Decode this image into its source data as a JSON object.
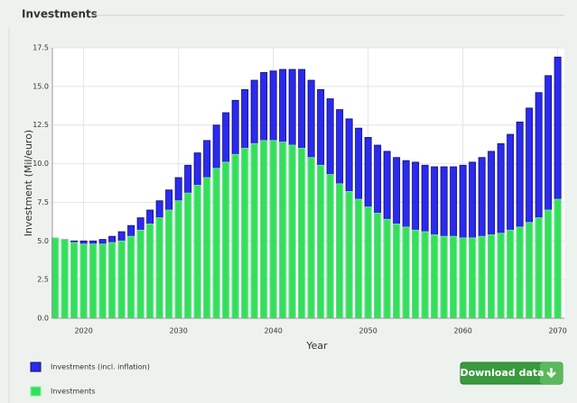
{
  "chart_data": {
    "type": "bar",
    "title": "Investments",
    "xlabel": "Year",
    "ylabel": "Investment (Mil/euro)",
    "x": [
      2017,
      2018,
      2019,
      2020,
      2021,
      2022,
      2023,
      2024,
      2025,
      2026,
      2027,
      2028,
      2029,
      2030,
      2031,
      2032,
      2033,
      2034,
      2035,
      2036,
      2037,
      2038,
      2039,
      2040,
      2041,
      2042,
      2043,
      2044,
      2045,
      2046,
      2047,
      2048,
      2049,
      2050,
      2051,
      2052,
      2053,
      2054,
      2055,
      2056,
      2057,
      2058,
      2059,
      2060,
      2061,
      2062,
      2063,
      2064,
      2065,
      2066,
      2067,
      2068,
      2069,
      2070
    ],
    "series": [
      {
        "name": "Investments (incl. inflation)",
        "color": "#2a2af0",
        "edge": "#10106a",
        "values": [
          5.2,
          5.1,
          5.0,
          5.0,
          5.0,
          5.1,
          5.3,
          5.6,
          6.0,
          6.5,
          7.0,
          7.6,
          8.3,
          9.1,
          9.9,
          10.7,
          11.5,
          12.5,
          13.3,
          14.1,
          14.8,
          15.4,
          15.9,
          16.0,
          16.1,
          16.1,
          16.1,
          15.4,
          14.8,
          14.2,
          13.5,
          12.9,
          12.3,
          11.7,
          11.2,
          10.8,
          10.4,
          10.2,
          10.1,
          9.9,
          9.8,
          9.8,
          9.8,
          9.9,
          10.1,
          10.4,
          10.8,
          11.3,
          11.9,
          12.7,
          13.6,
          14.6,
          15.7,
          16.9
        ]
      },
      {
        "name": "Investments",
        "color": "#33e05a",
        "edge": "#7ef09a",
        "values": [
          5.2,
          5.1,
          4.9,
          4.8,
          4.8,
          4.8,
          4.9,
          5.0,
          5.3,
          5.7,
          6.1,
          6.5,
          7.0,
          7.6,
          8.1,
          8.6,
          9.1,
          9.7,
          10.1,
          10.6,
          11.0,
          11.3,
          11.5,
          11.5,
          11.4,
          11.2,
          11.0,
          10.4,
          9.9,
          9.3,
          8.7,
          8.2,
          7.7,
          7.2,
          6.8,
          6.4,
          6.1,
          5.9,
          5.7,
          5.6,
          5.4,
          5.3,
          5.3,
          5.2,
          5.2,
          5.3,
          5.4,
          5.5,
          5.7,
          5.9,
          6.2,
          6.5,
          7.0,
          7.7
        ]
      }
    ],
    "xlim": [
      2016.7,
      2070.7
    ],
    "xticks": [
      2020,
      2030,
      2040,
      2050,
      2060,
      2070
    ],
    "ylim": [
      0,
      17.5
    ],
    "yticks": [
      {
        "value": 0,
        "label": "0.0"
      },
      {
        "value": 2.5,
        "label": "2.5"
      },
      {
        "value": 5,
        "label": "5.0"
      },
      {
        "value": 7.5,
        "label": "7.5"
      },
      {
        "value": 10,
        "label": "10.0"
      },
      {
        "value": 12.5,
        "label": "12.5"
      },
      {
        "value": 15,
        "label": "15.0"
      },
      {
        "value": 17.5,
        "label": "17.5"
      }
    ],
    "grid": true
  },
  "download_label": "Download data"
}
